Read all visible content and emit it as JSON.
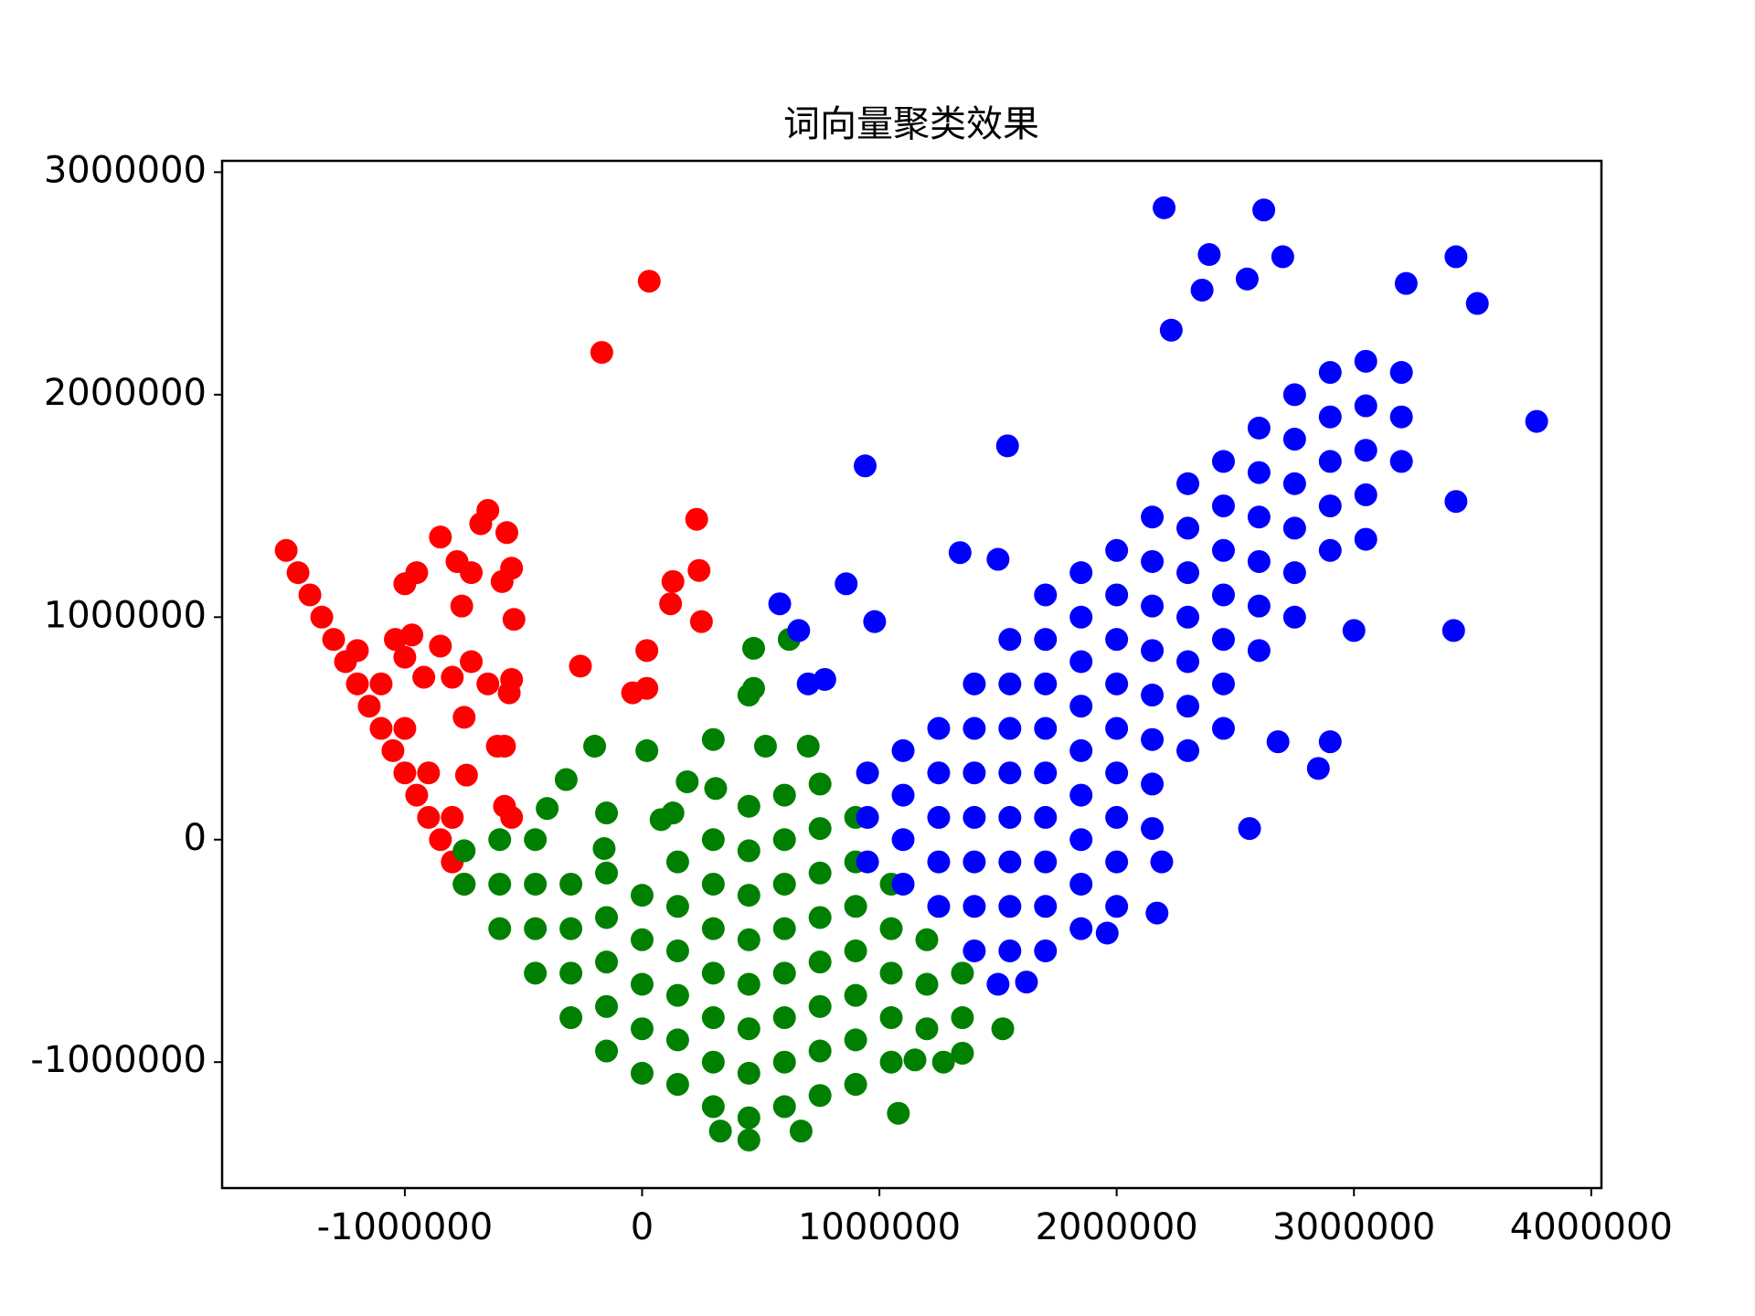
{
  "chart_data": {
    "type": "scatter",
    "title": "词向量聚类效果",
    "xlim": [
      -1770000,
      4043000
    ],
    "ylim": [
      -1566000,
      3051000
    ],
    "xticks": [
      -1000000,
      0,
      1000000,
      2000000,
      3000000,
      4000000
    ],
    "yticks": [
      -1000000,
      0,
      1000000,
      2000000,
      3000000
    ],
    "series": [
      {
        "color": "#ff0000",
        "x": [
          -1500000,
          -1450000,
          -1400000,
          -1350000,
          -1300000,
          -1250000,
          -1200000,
          -1150000,
          -1100000,
          -1050000,
          -1000000,
          -950000,
          -900000,
          -850000,
          -800000,
          -750000,
          -1200000,
          -1100000,
          -1000000,
          -900000,
          -800000,
          30000,
          -170000,
          -650000,
          -570000,
          -680000,
          -850000,
          -1000000,
          -950000,
          -780000,
          -550000,
          -590000,
          -720000,
          -760000,
          -540000,
          -1040000,
          -970000,
          -1000000,
          -850000,
          -720000,
          -800000,
          -920000,
          -650000,
          -550000,
          -560000,
          -750000,
          -610000,
          -580000,
          -740000,
          -580000,
          -550000,
          230000,
          240000,
          130000,
          120000,
          250000,
          20000,
          -260000,
          20000,
          -40000
        ],
        "y": [
          1300000,
          1200000,
          1100000,
          1000000,
          900000,
          800000,
          700000,
          600000,
          500000,
          400000,
          300000,
          200000,
          100000,
          0,
          -100000,
          -200000,
          850000,
          700000,
          500000,
          300000,
          100000,
          2510000,
          2190000,
          1480000,
          1380000,
          1420000,
          1360000,
          1150000,
          1200000,
          1250000,
          1220000,
          1160000,
          1200000,
          1050000,
          990000,
          900000,
          920000,
          820000,
          870000,
          800000,
          730000,
          730000,
          700000,
          720000,
          660000,
          550000,
          420000,
          420000,
          290000,
          150000,
          100000,
          1440000,
          1210000,
          1160000,
          1060000,
          980000,
          850000,
          780000,
          680000,
          660000
        ]
      },
      {
        "color": "#008000",
        "x": [
          -750000,
          -750000,
          -600000,
          -600000,
          -600000,
          -450000,
          -450000,
          -450000,
          -450000,
          -300000,
          -300000,
          -300000,
          -300000,
          -150000,
          -150000,
          -150000,
          -150000,
          -150000,
          0,
          0,
          0,
          0,
          0,
          150000,
          150000,
          150000,
          150000,
          150000,
          150000,
          300000,
          300000,
          300000,
          300000,
          300000,
          300000,
          300000,
          450000,
          450000,
          450000,
          450000,
          450000,
          450000,
          450000,
          450000,
          600000,
          600000,
          600000,
          600000,
          600000,
          600000,
          600000,
          600000,
          750000,
          750000,
          750000,
          750000,
          750000,
          750000,
          750000,
          750000,
          900000,
          900000,
          900000,
          900000,
          900000,
          900000,
          900000,
          1050000,
          1050000,
          1050000,
          1050000,
          1050000,
          1200000,
          1200000,
          1200000,
          1350000,
          1350000,
          470000,
          620000,
          470000,
          450000,
          -200000,
          20000,
          300000,
          520000,
          700000,
          -320000,
          190000,
          310000,
          -400000,
          -150000,
          80000,
          130000,
          -160000,
          1520000,
          1080000,
          670000,
          450000,
          330000,
          1270000,
          1350000,
          1150000
        ],
        "y": [
          -200000,
          -50000,
          -400000,
          -200000,
          0,
          -600000,
          -400000,
          -200000,
          0,
          -800000,
          -600000,
          -400000,
          -200000,
          -950000,
          -750000,
          -550000,
          -350000,
          -150000,
          -1050000,
          -850000,
          -650000,
          -450000,
          -250000,
          -1100000,
          -900000,
          -700000,
          -500000,
          -300000,
          -100000,
          -1200000,
          -1000000,
          -800000,
          -600000,
          -400000,
          -200000,
          0,
          -1250000,
          -1050000,
          -850000,
          -650000,
          -450000,
          -250000,
          -50000,
          150000,
          -1200000,
          -1000000,
          -800000,
          -600000,
          -400000,
          -200000,
          0,
          200000,
          -1150000,
          -950000,
          -750000,
          -550000,
          -350000,
          -150000,
          50000,
          250000,
          -1100000,
          -900000,
          -700000,
          -500000,
          -300000,
          -100000,
          100000,
          -1000000,
          -800000,
          -600000,
          -400000,
          -200000,
          -850000,
          -650000,
          -450000,
          -800000,
          -600000,
          860000,
          900000,
          680000,
          650000,
          420000,
          400000,
          450000,
          420000,
          420000,
          270000,
          260000,
          230000,
          140000,
          120000,
          90000,
          120000,
          -40000,
          -850000,
          -1230000,
          -1310000,
          -1350000,
          -1310000,
          -1000000,
          -960000,
          -990000
        ]
      },
      {
        "color": "#0000ff",
        "x": [
          950000,
          950000,
          950000,
          1100000,
          1100000,
          1100000,
          1100000,
          1250000,
          1250000,
          1250000,
          1250000,
          1250000,
          1400000,
          1400000,
          1400000,
          1400000,
          1400000,
          1400000,
          1400000,
          1550000,
          1550000,
          1550000,
          1550000,
          1550000,
          1550000,
          1550000,
          1550000,
          1700000,
          1700000,
          1700000,
          1700000,
          1700000,
          1700000,
          1700000,
          1700000,
          1700000,
          1850000,
          1850000,
          1850000,
          1850000,
          1850000,
          1850000,
          1850000,
          1850000,
          1850000,
          2000000,
          2000000,
          2000000,
          2000000,
          2000000,
          2000000,
          2000000,
          2000000,
          2000000,
          2150000,
          2150000,
          2150000,
          2150000,
          2150000,
          2150000,
          2150000,
          2150000,
          2300000,
          2300000,
          2300000,
          2300000,
          2300000,
          2300000,
          2300000,
          2450000,
          2450000,
          2450000,
          2450000,
          2450000,
          2450000,
          2450000,
          2600000,
          2600000,
          2600000,
          2600000,
          2600000,
          2600000,
          2750000,
          2750000,
          2750000,
          2750000,
          2750000,
          2750000,
          2900000,
          2900000,
          2900000,
          2900000,
          2900000,
          3050000,
          3050000,
          3050000,
          3050000,
          3050000,
          3200000,
          3200000,
          3200000,
          2200000,
          2620000,
          2390000,
          2700000,
          3430000,
          2360000,
          2550000,
          3220000,
          3520000,
          2230000,
          1540000,
          940000,
          3770000,
          3430000,
          1500000,
          1340000,
          860000,
          580000,
          660000,
          980000,
          3420000,
          3000000,
          700000,
          770000,
          2560000,
          2900000,
          2850000,
          2170000,
          1620000,
          1960000,
          1500000,
          2680000,
          2190000
        ],
        "y": [
          300000,
          100000,
          -100000,
          400000,
          200000,
          0,
          -200000,
          500000,
          300000,
          100000,
          -100000,
          -300000,
          700000,
          500000,
          300000,
          100000,
          -100000,
          -300000,
          -500000,
          900000,
          700000,
          500000,
          300000,
          100000,
          -100000,
          -300000,
          -500000,
          1100000,
          900000,
          700000,
          500000,
          300000,
          100000,
          -100000,
          -300000,
          -500000,
          1200000,
          1000000,
          800000,
          600000,
          400000,
          200000,
          0,
          -200000,
          -400000,
          1300000,
          1100000,
          900000,
          700000,
          500000,
          300000,
          100000,
          -100000,
          -300000,
          1450000,
          1250000,
          1050000,
          850000,
          650000,
          450000,
          250000,
          50000,
          1600000,
          1400000,
          1200000,
          1000000,
          800000,
          600000,
          400000,
          1700000,
          1500000,
          1300000,
          1100000,
          900000,
          700000,
          500000,
          1850000,
          1650000,
          1450000,
          1250000,
          1050000,
          850000,
          2000000,
          1800000,
          1600000,
          1400000,
          1200000,
          1000000,
          2100000,
          1900000,
          1700000,
          1500000,
          1300000,
          2150000,
          1950000,
          1750000,
          1550000,
          1350000,
          2100000,
          1900000,
          1700000,
          2840000,
          2830000,
          2630000,
          2620000,
          2620000,
          2470000,
          2520000,
          2500000,
          2410000,
          2290000,
          1770000,
          1680000,
          1880000,
          1520000,
          1260000,
          1290000,
          1150000,
          1060000,
          940000,
          980000,
          940000,
          940000,
          700000,
          720000,
          50000,
          440000,
          320000,
          -330000,
          -640000,
          -420000,
          -650000,
          440000,
          -100000
        ]
      }
    ]
  }
}
